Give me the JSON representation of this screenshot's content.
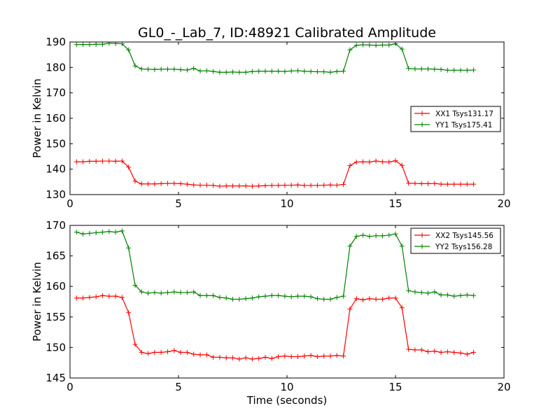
{
  "title": "GL0_-_Lab_7, ID:48921 Calibrated Amplitude",
  "xlabel": "Time (seconds)",
  "chart_data": [
    {
      "type": "line",
      "ylabel": "Power in Kelvin",
      "xlim": [
        0,
        20
      ],
      "ylim": [
        130,
        190
      ],
      "xticks": [
        0,
        5,
        10,
        15,
        20
      ],
      "yticks": [
        130,
        140,
        150,
        160,
        170,
        180,
        190
      ],
      "grid": false,
      "legend": "center-right",
      "x": [
        0.3,
        0.6,
        0.9,
        1.2,
        1.5,
        1.8,
        2.1,
        2.4,
        2.7,
        3.0,
        3.3,
        3.6,
        3.9,
        4.2,
        4.5,
        4.8,
        5.1,
        5.4,
        5.7,
        6.0,
        6.3,
        6.6,
        6.9,
        7.2,
        7.5,
        7.8,
        8.1,
        8.4,
        8.7,
        9.0,
        9.3,
        9.6,
        9.9,
        10.2,
        10.5,
        10.8,
        11.1,
        11.4,
        11.7,
        12.0,
        12.3,
        12.6,
        12.9,
        13.2,
        13.5,
        13.8,
        14.1,
        14.4,
        14.7,
        15.0,
        15.3,
        15.6,
        15.9,
        16.2,
        16.5,
        16.8,
        17.1,
        17.4,
        17.7,
        18.0,
        18.3,
        18.6
      ],
      "series": [
        {
          "name": "XX1 Tsys131.17",
          "color": "#ff0000",
          "values": [
            142.9,
            142.9,
            143.1,
            143.1,
            143.2,
            143.2,
            143.1,
            143.2,
            140.8,
            135.3,
            134.2,
            134.2,
            134.2,
            134.3,
            134.4,
            134.4,
            134.3,
            134.1,
            133.8,
            133.7,
            133.7,
            133.6,
            133.3,
            133.4,
            133.4,
            133.4,
            133.4,
            133.3,
            133.4,
            133.5,
            133.6,
            133.6,
            133.7,
            133.7,
            133.8,
            133.6,
            133.6,
            133.6,
            133.7,
            133.8,
            133.7,
            134.0,
            141.4,
            142.8,
            142.9,
            142.8,
            143.2,
            142.9,
            142.8,
            143.3,
            141.5,
            134.5,
            134.4,
            134.3,
            134.3,
            134.4,
            134.1,
            134.1,
            134.1,
            134.1,
            134.1,
            134.1
          ]
        },
        {
          "name": "YY1 Tsys175.41",
          "color": "#008000",
          "values": [
            189.0,
            189.0,
            189.0,
            189.1,
            189.1,
            189.5,
            189.4,
            189.3,
            186.9,
            180.6,
            179.4,
            179.3,
            179.2,
            179.3,
            179.3,
            179.3,
            179.1,
            179.0,
            179.6,
            178.6,
            178.7,
            178.4,
            178.1,
            178.1,
            178.2,
            178.1,
            178.1,
            178.4,
            178.5,
            178.5,
            178.5,
            178.5,
            178.4,
            178.6,
            178.7,
            178.5,
            178.4,
            178.3,
            178.3,
            178.1,
            178.4,
            178.5,
            186.9,
            188.7,
            188.9,
            188.8,
            188.7,
            188.8,
            188.8,
            189.3,
            187.2,
            179.6,
            179.4,
            179.4,
            179.4,
            179.3,
            179.2,
            178.9,
            178.9,
            178.9,
            178.9,
            179.0
          ]
        }
      ]
    },
    {
      "type": "line",
      "ylabel": "Power in Kelvin",
      "xlim": [
        0,
        20
      ],
      "ylim": [
        145,
        170
      ],
      "xticks": [
        0,
        5,
        10,
        15,
        20
      ],
      "yticks": [
        145,
        150,
        155,
        160,
        165,
        170
      ],
      "grid": false,
      "legend": "top-right",
      "x": [
        0.3,
        0.6,
        0.9,
        1.2,
        1.5,
        1.8,
        2.1,
        2.4,
        2.7,
        3.0,
        3.3,
        3.6,
        3.9,
        4.2,
        4.5,
        4.8,
        5.1,
        5.4,
        5.7,
        6.0,
        6.3,
        6.6,
        6.9,
        7.2,
        7.5,
        7.8,
        8.1,
        8.4,
        8.7,
        9.0,
        9.3,
        9.6,
        9.9,
        10.2,
        10.5,
        10.8,
        11.1,
        11.4,
        11.7,
        12.0,
        12.3,
        12.6,
        12.9,
        13.2,
        13.5,
        13.8,
        14.1,
        14.4,
        14.7,
        15.0,
        15.3,
        15.6,
        15.9,
        16.2,
        16.5,
        16.8,
        17.1,
        17.4,
        17.7,
        18.0,
        18.3,
        18.6
      ],
      "series": [
        {
          "name": "XX2 Tsys145.56",
          "color": "#ff0000",
          "values": [
            158.1,
            158.1,
            158.2,
            158.3,
            158.5,
            158.4,
            158.4,
            158.2,
            155.7,
            150.5,
            149.2,
            149.0,
            149.2,
            149.2,
            149.3,
            149.5,
            149.2,
            149.2,
            148.9,
            148.8,
            148.8,
            148.4,
            148.4,
            148.3,
            148.3,
            148.1,
            148.3,
            148.1,
            148.2,
            148.4,
            148.2,
            148.5,
            148.6,
            148.5,
            148.5,
            148.6,
            148.7,
            148.5,
            148.6,
            148.6,
            148.7,
            148.6,
            156.3,
            158.0,
            157.8,
            158.0,
            157.9,
            157.9,
            158.1,
            158.1,
            156.5,
            149.7,
            149.6,
            149.6,
            149.3,
            149.4,
            149.2,
            149.3,
            149.2,
            149.1,
            148.9,
            149.2
          ]
        },
        {
          "name": "YY2 Tsys156.28",
          "color": "#008000",
          "values": [
            168.9,
            168.6,
            168.7,
            168.8,
            168.9,
            169.0,
            168.9,
            169.1,
            166.3,
            160.2,
            159.1,
            158.9,
            159.0,
            158.9,
            159.0,
            159.1,
            159.0,
            159.0,
            159.1,
            158.5,
            158.5,
            158.5,
            158.2,
            158.1,
            157.9,
            157.9,
            158.0,
            158.1,
            158.3,
            158.4,
            158.5,
            158.5,
            158.4,
            158.3,
            158.4,
            158.4,
            158.3,
            158.0,
            157.9,
            157.9,
            158.2,
            158.4,
            166.6,
            168.2,
            168.4,
            168.2,
            168.3,
            168.3,
            168.4,
            168.6,
            166.6,
            159.3,
            159.1,
            159.0,
            158.9,
            159.1,
            158.6,
            158.6,
            158.4,
            158.5,
            158.6,
            158.5
          ]
        }
      ]
    }
  ]
}
